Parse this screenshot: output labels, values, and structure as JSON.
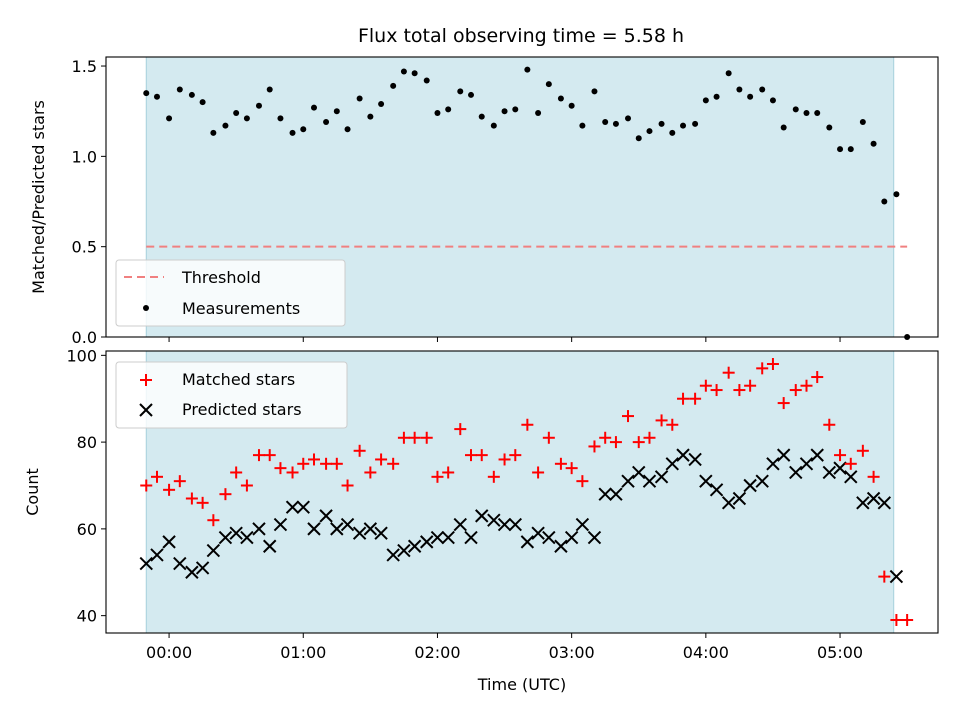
{
  "chart_data": {
    "title": "Flux total observing time = 5.58 h",
    "colors": {
      "shade": "#d4eaf0",
      "shade_edge": "#a6d0dc",
      "threshold": "#f08080",
      "measurements": "#000000",
      "matched": "#ff0000",
      "predicted": "#000000"
    },
    "xlabel": "Time (UTC)",
    "xlim_hours": [
      -0.47,
      5.73
    ],
    "x_ticks": [
      {
        "h": 0,
        "label": "00:00"
      },
      {
        "h": 1,
        "label": "01:00"
      },
      {
        "h": 2,
        "label": "02:00"
      },
      {
        "h": 3,
        "label": "03:00"
      },
      {
        "h": 4,
        "label": "04:00"
      },
      {
        "h": 5,
        "label": "05:00"
      }
    ],
    "observing_window_hours": [
      -0.17,
      5.4
    ],
    "top": {
      "type": "scatter",
      "ylabel": "Matched/Predicted stars",
      "ylim": [
        0,
        1.55
      ],
      "y_ticks": [
        {
          "v": 0,
          "label": "0.0"
        },
        {
          "v": 0.5,
          "label": "0.5"
        },
        {
          "v": 1.0,
          "label": "1.0"
        },
        {
          "v": 1.5,
          "label": "1.5"
        }
      ],
      "threshold": {
        "name": "Threshold",
        "y": 0.5,
        "x_range": [
          -0.17,
          5.5
        ]
      },
      "legend": {
        "placement": "lower-left",
        "entries": [
          "Threshold",
          "Measurements"
        ]
      },
      "series": [
        {
          "name": "Measurements",
          "x": [
            -0.17,
            -0.09,
            0.0,
            0.08,
            0.17,
            0.25,
            0.33,
            0.42,
            0.5,
            0.58,
            0.67,
            0.75,
            0.83,
            0.92,
            1.0,
            1.08,
            1.17,
            1.25,
            1.33,
            1.42,
            1.5,
            1.58,
            1.67,
            1.75,
            1.83,
            1.92,
            2.0,
            2.08,
            2.17,
            2.25,
            2.33,
            2.42,
            2.5,
            2.58,
            2.67,
            2.75,
            2.83,
            2.92,
            3.0,
            3.08,
            3.17,
            3.25,
            3.33,
            3.42,
            3.5,
            3.58,
            3.67,
            3.75,
            3.83,
            3.92,
            4.0,
            4.08,
            4.17,
            4.25,
            4.33,
            4.42,
            4.5,
            4.58,
            4.67,
            4.75,
            4.83,
            4.92,
            5.0,
            5.08,
            5.17,
            5.25,
            5.33,
            5.42,
            5.5
          ],
          "y": [
            1.35,
            1.33,
            1.21,
            1.37,
            1.34,
            1.3,
            1.13,
            1.17,
            1.24,
            1.21,
            1.28,
            1.37,
            1.21,
            1.13,
            1.15,
            1.27,
            1.19,
            1.25,
            1.15,
            1.32,
            1.22,
            1.29,
            1.39,
            1.47,
            1.46,
            1.42,
            1.24,
            1.26,
            1.36,
            1.34,
            1.22,
            1.17,
            1.25,
            1.26,
            1.48,
            1.24,
            1.4,
            1.32,
            1.28,
            1.17,
            1.36,
            1.19,
            1.18,
            1.21,
            1.1,
            1.14,
            1.18,
            1.13,
            1.17,
            1.18,
            1.31,
            1.33,
            1.46,
            1.37,
            1.33,
            1.37,
            1.31,
            1.16,
            1.26,
            1.24,
            1.24,
            1.16,
            1.04,
            1.04,
            1.19,
            1.07,
            0.75,
            0.79,
            0.0
          ]
        }
      ]
    },
    "bottom": {
      "type": "scatter",
      "ylabel": "Count",
      "ylim": [
        36,
        101
      ],
      "y_ticks": [
        {
          "v": 40,
          "label": "40"
        },
        {
          "v": 60,
          "label": "60"
        },
        {
          "v": 80,
          "label": "80"
        },
        {
          "v": 100,
          "label": "100"
        }
      ],
      "legend": {
        "placement": "upper-left",
        "entries": [
          "Matched stars",
          "Predicted stars"
        ]
      },
      "series": [
        {
          "name": "Matched stars",
          "marker": "plus",
          "x": [
            -0.17,
            -0.09,
            0.0,
            0.08,
            0.17,
            0.25,
            0.33,
            0.42,
            0.5,
            0.58,
            0.67,
            0.75,
            0.83,
            0.92,
            1.0,
            1.08,
            1.17,
            1.25,
            1.33,
            1.42,
            1.5,
            1.58,
            1.67,
            1.75,
            1.83,
            1.92,
            2.0,
            2.08,
            2.17,
            2.25,
            2.33,
            2.42,
            2.5,
            2.58,
            2.67,
            2.75,
            2.83,
            2.92,
            3.0,
            3.08,
            3.17,
            3.25,
            3.33,
            3.42,
            3.5,
            3.58,
            3.67,
            3.75,
            3.83,
            3.92,
            4.0,
            4.08,
            4.17,
            4.25,
            4.33,
            4.42,
            4.5,
            4.58,
            4.67,
            4.75,
            4.83,
            4.92,
            5.0,
            5.08,
            5.17,
            5.25,
            5.33,
            5.42,
            5.5
          ],
          "y": [
            70,
            72,
            69,
            71,
            67,
            66,
            62,
            68,
            73,
            70,
            77,
            77,
            74,
            73,
            75,
            76,
            75,
            75,
            70,
            78,
            73,
            76,
            75,
            81,
            81,
            81,
            72,
            73,
            83,
            77,
            77,
            72,
            76,
            77,
            84,
            73,
            81,
            75,
            74,
            71,
            79,
            81,
            80,
            86,
            80,
            81,
            85,
            84,
            90,
            90,
            93,
            92,
            96,
            92,
            93,
            97,
            98,
            89,
            92,
            93,
            95,
            84,
            77,
            75,
            78,
            72,
            49,
            39,
            39
          ]
        },
        {
          "name": "Predicted stars",
          "marker": "x",
          "x": [
            -0.17,
            -0.09,
            0.0,
            0.08,
            0.17,
            0.25,
            0.33,
            0.42,
            0.5,
            0.58,
            0.67,
            0.75,
            0.83,
            0.92,
            1.0,
            1.08,
            1.17,
            1.25,
            1.33,
            1.42,
            1.5,
            1.58,
            1.67,
            1.75,
            1.83,
            1.92,
            2.0,
            2.08,
            2.17,
            2.25,
            2.33,
            2.42,
            2.5,
            2.58,
            2.67,
            2.75,
            2.83,
            2.92,
            3.0,
            3.08,
            3.17,
            3.25,
            3.33,
            3.42,
            3.5,
            3.58,
            3.67,
            3.75,
            3.83,
            3.92,
            4.0,
            4.08,
            4.17,
            4.25,
            4.33,
            4.42,
            4.5,
            4.58,
            4.67,
            4.75,
            4.83,
            4.92,
            5.0,
            5.08,
            5.17,
            5.25,
            5.33,
            5.42
          ],
          "y": [
            52,
            54,
            57,
            52,
            50,
            51,
            55,
            58,
            59,
            58,
            60,
            56,
            61,
            65,
            65,
            60,
            63,
            60,
            61,
            59,
            60,
            59,
            54,
            55,
            56,
            57,
            58,
            58,
            61,
            58,
            63,
            62,
            61,
            61,
            57,
            59,
            58,
            56,
            58,
            61,
            58,
            68,
            68,
            71,
            73,
            71,
            72,
            75,
            77,
            76,
            71,
            69,
            66,
            67,
            70,
            71,
            75,
            77,
            73,
            75,
            77,
            73,
            74,
            72,
            66,
            67,
            66,
            49
          ]
        }
      ]
    }
  }
}
